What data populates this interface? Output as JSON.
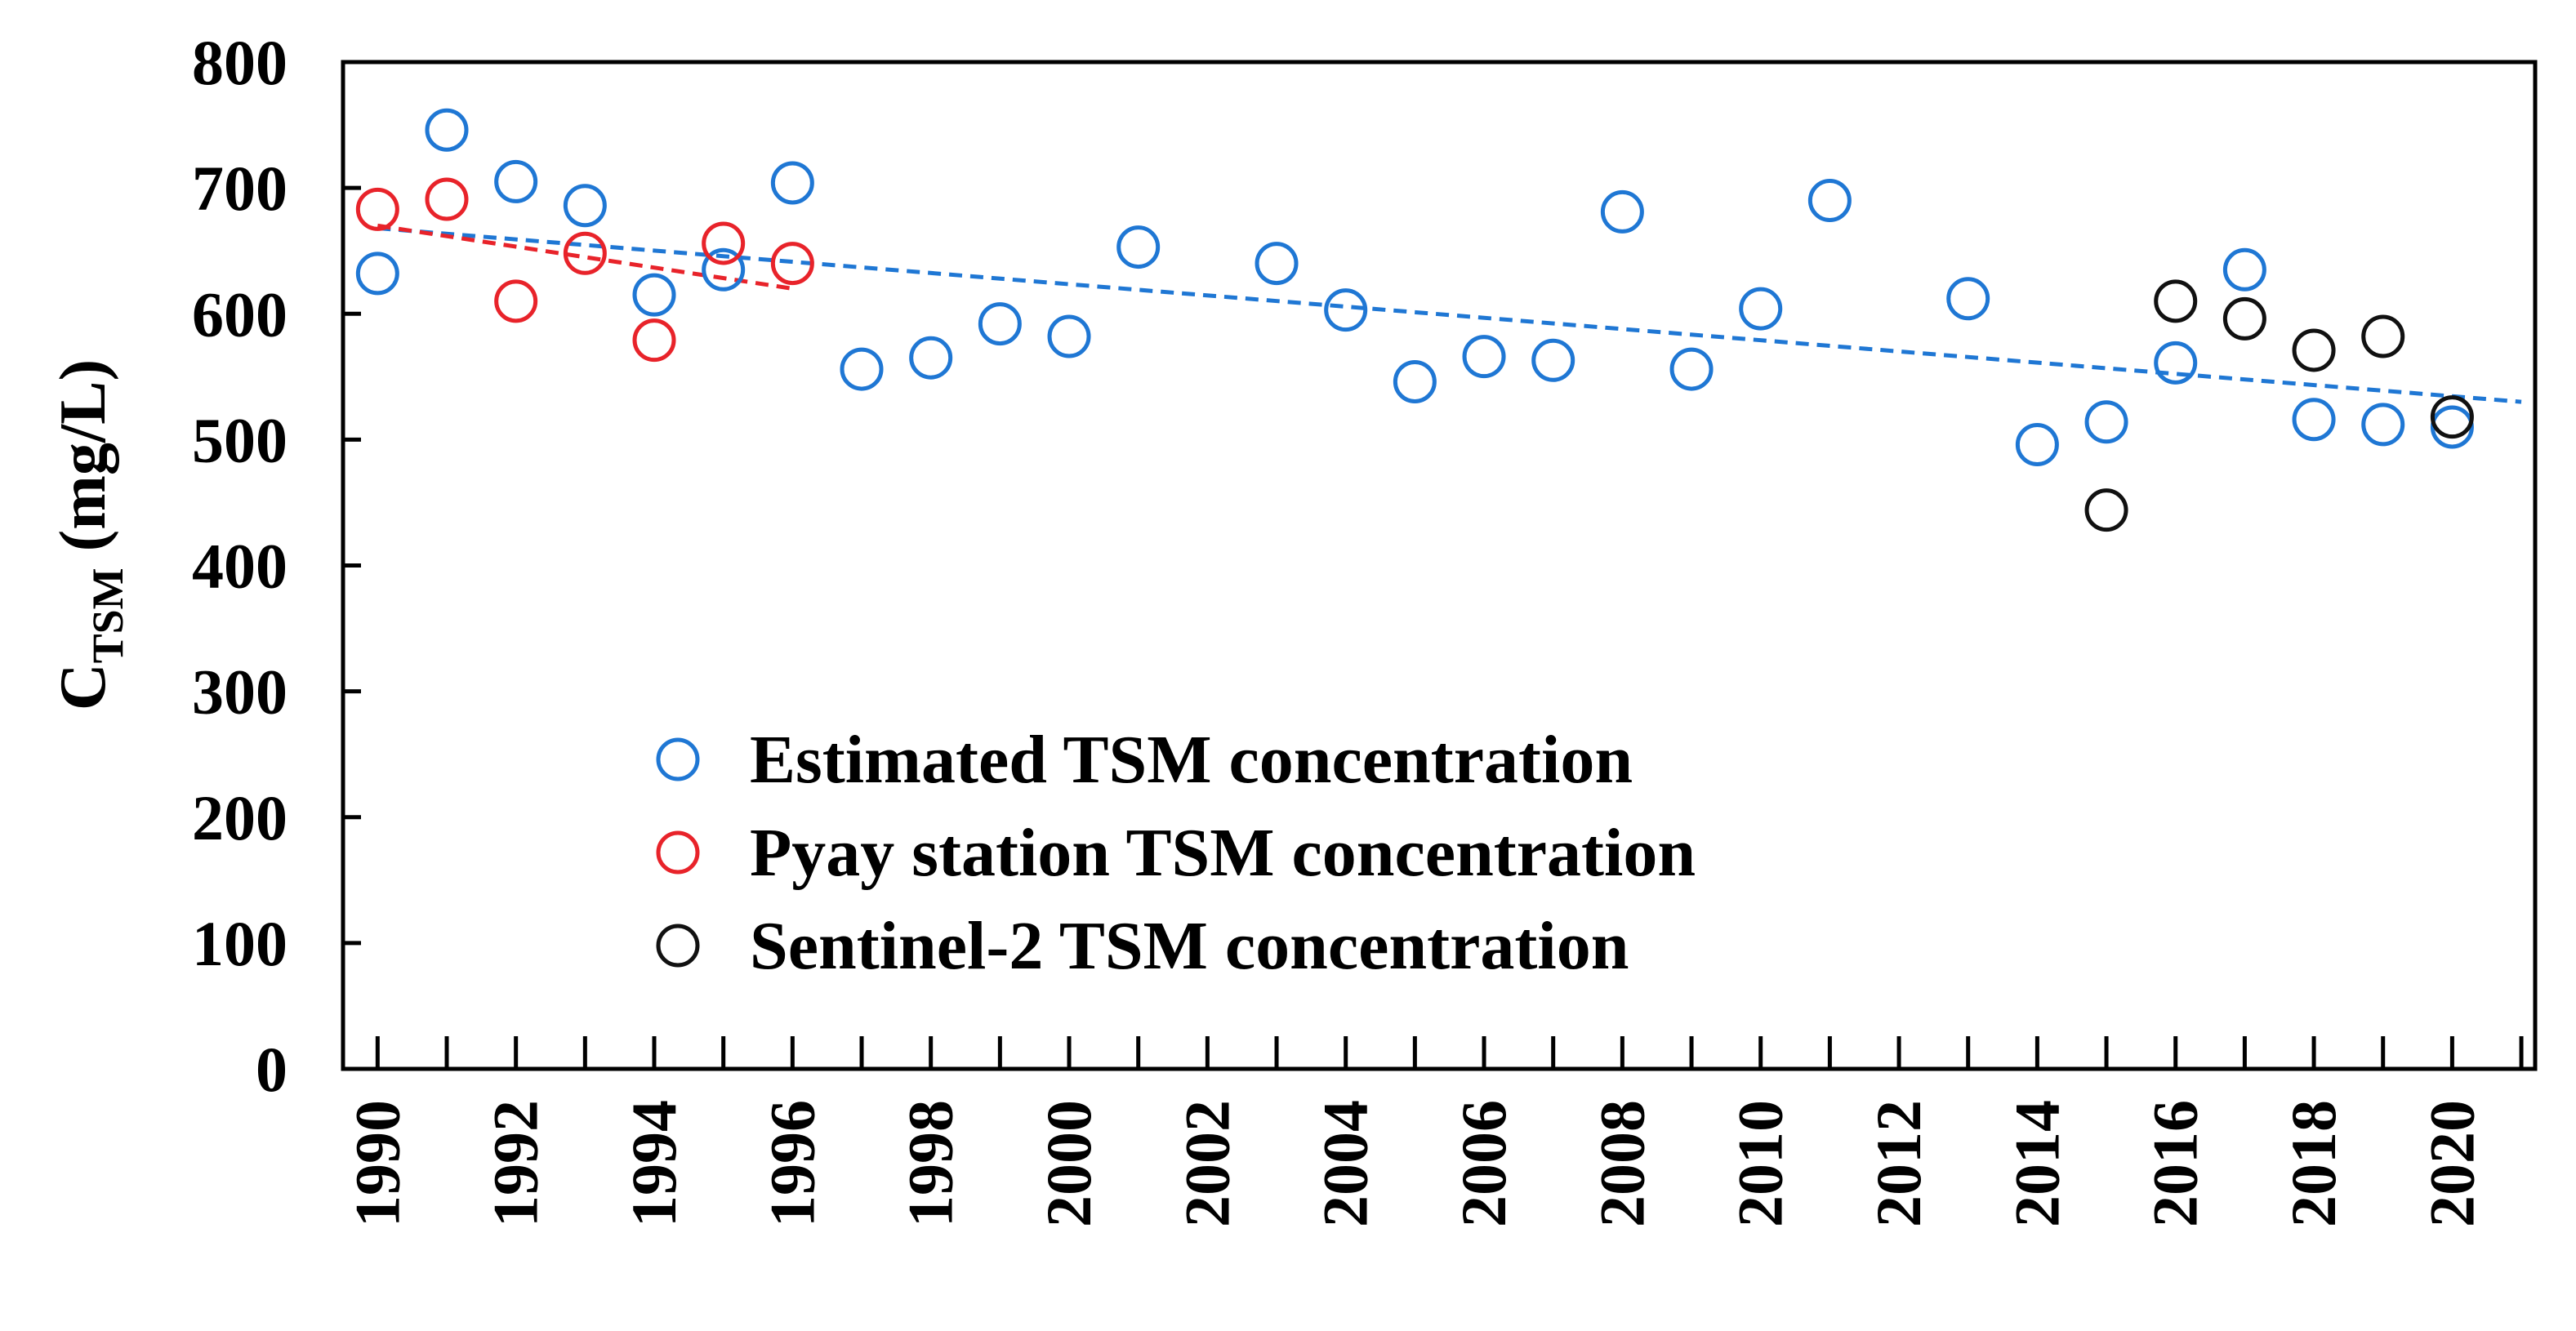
{
  "chart_data": {
    "type": "scatter",
    "title": "",
    "xlabel": "",
    "ylabel": {
      "main": "C",
      "subscript": "TSM",
      "unit": " (mg/L)"
    },
    "xlim": [
      1989.5,
      2021.2
    ],
    "ylim": [
      0,
      800
    ],
    "xticks": [
      1990,
      1992,
      1994,
      1996,
      1998,
      2000,
      2002,
      2004,
      2006,
      2008,
      2010,
      2012,
      2014,
      2016,
      2018,
      2020
    ],
    "yticks": [
      0,
      100,
      200,
      300,
      400,
      500,
      600,
      700,
      800
    ],
    "grid": false,
    "legend_position": "bottom-center",
    "series": [
      {
        "name": "Estimated TSM concentration",
        "color": "#1f77d4",
        "x": [
          1990,
          1991,
          1992,
          1993,
          1994,
          1995,
          1996,
          1997,
          1998,
          1999,
          2000,
          2001,
          2003,
          2004,
          2005,
          2006,
          2007,
          2008,
          2009,
          2010,
          2011,
          2013,
          2014,
          2015,
          2016,
          2017,
          2018,
          2019,
          2020
        ],
        "y": [
          632,
          746,
          705,
          686,
          615,
          635,
          704,
          556,
          565,
          592,
          582,
          653,
          640,
          603,
          546,
          566,
          563,
          681,
          556,
          604,
          690,
          612,
          496,
          514,
          561,
          635,
          516,
          512,
          510
        ]
      },
      {
        "name": "Pyay station TSM concentration",
        "color": "#e8232a",
        "x": [
          1990,
          1991,
          1992,
          1993,
          1994,
          1995,
          1996
        ],
        "y": [
          683,
          691,
          610,
          648,
          579,
          656,
          640
        ]
      },
      {
        "name": "Sentinel-2 TSM concentration",
        "color": "#111111",
        "x": [
          2015,
          2016,
          2017,
          2018,
          2019,
          2020
        ],
        "y": [
          444,
          610,
          596,
          571,
          582,
          518
        ]
      }
    ],
    "trendlines": [
      {
        "series": "Estimated TSM concentration",
        "color": "#1f77d4",
        "x": [
          1990,
          2021
        ],
        "y": [
          668,
          530
        ]
      },
      {
        "series": "Pyay station TSM concentration",
        "color": "#e8232a",
        "x": [
          1990,
          1996
        ],
        "y": [
          670,
          620
        ]
      }
    ]
  }
}
